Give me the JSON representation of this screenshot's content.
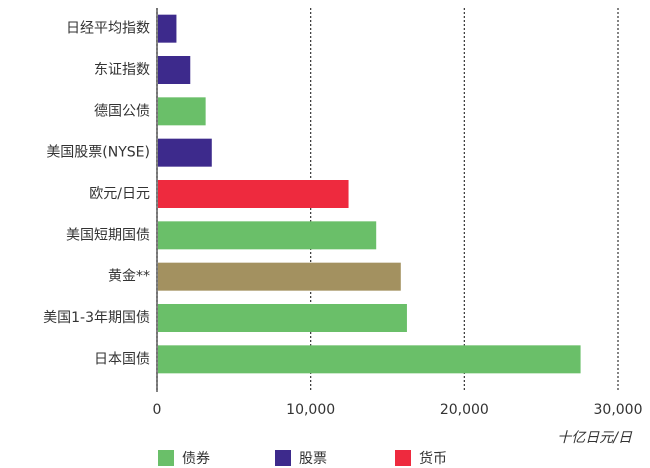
{
  "chart_data": {
    "type": "hbar",
    "categories": [
      "日经平均指数",
      "东证指数",
      "德国公债",
      "美国股票(NYSE)",
      "欧元/日元",
      "美国短期国债",
      "黄金**",
      "美国1-3年期国债",
      "日本国债"
    ],
    "values": [
      1200,
      2100,
      3100,
      3500,
      12400,
      14200,
      15800,
      16200,
      27500
    ],
    "colors": [
      "#3d2a8c",
      "#3d2a8c",
      "#6abf69",
      "#3d2a8c",
      "#ee2a3e",
      "#6abf69",
      "#a39160",
      "#6abf69",
      "#6abf69"
    ],
    "x_label": "十亿日元/日",
    "xlim": [
      0,
      30000
    ],
    "xticks": [
      0,
      {
        "value": 10000,
        "label": "10,000"
      },
      {
        "value": 20000,
        "label": "20,000"
      },
      {
        "value": 30000,
        "label": "30,000"
      }
    ],
    "grid": true,
    "legend": [
      {
        "name": "债券",
        "color": "#6abf69"
      },
      {
        "name": "股票",
        "color": "#3d2a8c"
      },
      {
        "name": "货币",
        "color": "#ee2a3e"
      }
    ]
  }
}
